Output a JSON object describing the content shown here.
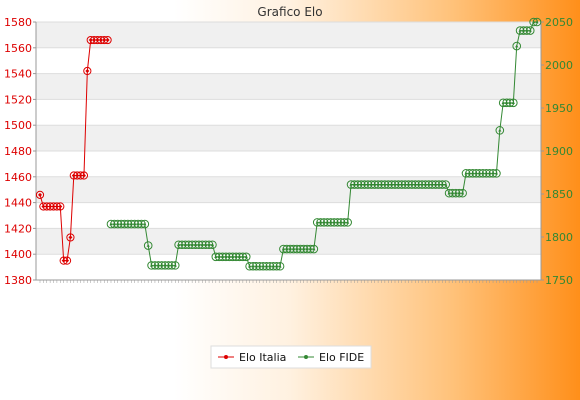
{
  "chart_data": {
    "type": "line",
    "title": "Grafico Elo",
    "left_axis": {
      "ylim": [
        1380,
        1580
      ],
      "ticks": [
        1380,
        1400,
        1420,
        1440,
        1460,
        1480,
        1500,
        1520,
        1540,
        1560,
        1580
      ],
      "color": "#dd0000"
    },
    "right_axis": {
      "ylim": [
        1750,
        2050
      ],
      "ticks": [
        1750,
        1800,
        1850,
        1900,
        1950,
        2000,
        2050
      ],
      "color": "#338833"
    },
    "x_count": 148,
    "series": [
      {
        "name": "Elo Italia",
        "axis": "left",
        "color": "#dd0000",
        "points": [
          [
            0,
            1446
          ],
          [
            1,
            1437
          ],
          [
            2,
            1437
          ],
          [
            3,
            1437
          ],
          [
            4,
            1437
          ],
          [
            5,
            1437
          ],
          [
            6,
            1437
          ],
          [
            7,
            1395
          ],
          [
            8,
            1395
          ],
          [
            9,
            1413
          ],
          [
            10,
            1461
          ],
          [
            11,
            1461
          ],
          [
            12,
            1461
          ],
          [
            13,
            1461
          ],
          [
            14,
            1542
          ],
          [
            15,
            1566
          ],
          [
            16,
            1566
          ],
          [
            17,
            1566
          ],
          [
            18,
            1566
          ],
          [
            19,
            1566
          ],
          [
            20,
            1566
          ]
        ]
      },
      {
        "name": "Elo FIDE",
        "axis": "right",
        "color": "#338833",
        "points": [
          [
            21,
            1815
          ],
          [
            22,
            1815
          ],
          [
            23,
            1815
          ],
          [
            24,
            1815
          ],
          [
            25,
            1815
          ],
          [
            26,
            1815
          ],
          [
            27,
            1815
          ],
          [
            28,
            1815
          ],
          [
            29,
            1815
          ],
          [
            30,
            1815
          ],
          [
            31,
            1815
          ],
          [
            32,
            1790
          ],
          [
            33,
            1767
          ],
          [
            34,
            1767
          ],
          [
            35,
            1767
          ],
          [
            36,
            1767
          ],
          [
            37,
            1767
          ],
          [
            38,
            1767
          ],
          [
            39,
            1767
          ],
          [
            40,
            1767
          ],
          [
            41,
            1791
          ],
          [
            42,
            1791
          ],
          [
            43,
            1791
          ],
          [
            44,
            1791
          ],
          [
            45,
            1791
          ],
          [
            46,
            1791
          ],
          [
            47,
            1791
          ],
          [
            48,
            1791
          ],
          [
            49,
            1791
          ],
          [
            50,
            1791
          ],
          [
            51,
            1791
          ],
          [
            52,
            1777
          ],
          [
            53,
            1777
          ],
          [
            54,
            1777
          ],
          [
            55,
            1777
          ],
          [
            56,
            1777
          ],
          [
            57,
            1777
          ],
          [
            58,
            1777
          ],
          [
            59,
            1777
          ],
          [
            60,
            1777
          ],
          [
            61,
            1777
          ],
          [
            62,
            1766
          ],
          [
            63,
            1766
          ],
          [
            64,
            1766
          ],
          [
            65,
            1766
          ],
          [
            66,
            1766
          ],
          [
            67,
            1766
          ],
          [
            68,
            1766
          ],
          [
            69,
            1766
          ],
          [
            70,
            1766
          ],
          [
            71,
            1766
          ],
          [
            72,
            1786
          ],
          [
            73,
            1786
          ],
          [
            74,
            1786
          ],
          [
            75,
            1786
          ],
          [
            76,
            1786
          ],
          [
            77,
            1786
          ],
          [
            78,
            1786
          ],
          [
            79,
            1786
          ],
          [
            80,
            1786
          ],
          [
            81,
            1786
          ],
          [
            82,
            1817
          ],
          [
            83,
            1817
          ],
          [
            84,
            1817
          ],
          [
            85,
            1817
          ],
          [
            86,
            1817
          ],
          [
            87,
            1817
          ],
          [
            88,
            1817
          ],
          [
            89,
            1817
          ],
          [
            90,
            1817
          ],
          [
            91,
            1817
          ],
          [
            92,
            1861
          ],
          [
            93,
            1861
          ],
          [
            94,
            1861
          ],
          [
            95,
            1861
          ],
          [
            96,
            1861
          ],
          [
            97,
            1861
          ],
          [
            98,
            1861
          ],
          [
            99,
            1861
          ],
          [
            100,
            1861
          ],
          [
            101,
            1861
          ],
          [
            102,
            1861
          ],
          [
            103,
            1861
          ],
          [
            104,
            1861
          ],
          [
            105,
            1861
          ],
          [
            106,
            1861
          ],
          [
            107,
            1861
          ],
          [
            108,
            1861
          ],
          [
            109,
            1861
          ],
          [
            110,
            1861
          ],
          [
            111,
            1861
          ],
          [
            112,
            1861
          ],
          [
            113,
            1861
          ],
          [
            114,
            1861
          ],
          [
            115,
            1861
          ],
          [
            116,
            1861
          ],
          [
            117,
            1861
          ],
          [
            118,
            1861
          ],
          [
            119,
            1861
          ],
          [
            120,
            1861
          ],
          [
            121,
            1851
          ],
          [
            122,
            1851
          ],
          [
            123,
            1851
          ],
          [
            124,
            1851
          ],
          [
            125,
            1851
          ],
          [
            126,
            1874
          ],
          [
            127,
            1874
          ],
          [
            128,
            1874
          ],
          [
            129,
            1874
          ],
          [
            130,
            1874
          ],
          [
            131,
            1874
          ],
          [
            132,
            1874
          ],
          [
            133,
            1874
          ],
          [
            134,
            1874
          ],
          [
            135,
            1874
          ],
          [
            136,
            1924
          ],
          [
            137,
            1956
          ],
          [
            138,
            1956
          ],
          [
            139,
            1956
          ],
          [
            140,
            1956
          ],
          [
            141,
            2022
          ],
          [
            142,
            2040
          ],
          [
            143,
            2040
          ],
          [
            144,
            2040
          ],
          [
            145,
            2040
          ],
          [
            146,
            2050
          ],
          [
            147,
            2050
          ]
        ]
      }
    ],
    "grid": true,
    "legend_position": "bottom-center"
  }
}
